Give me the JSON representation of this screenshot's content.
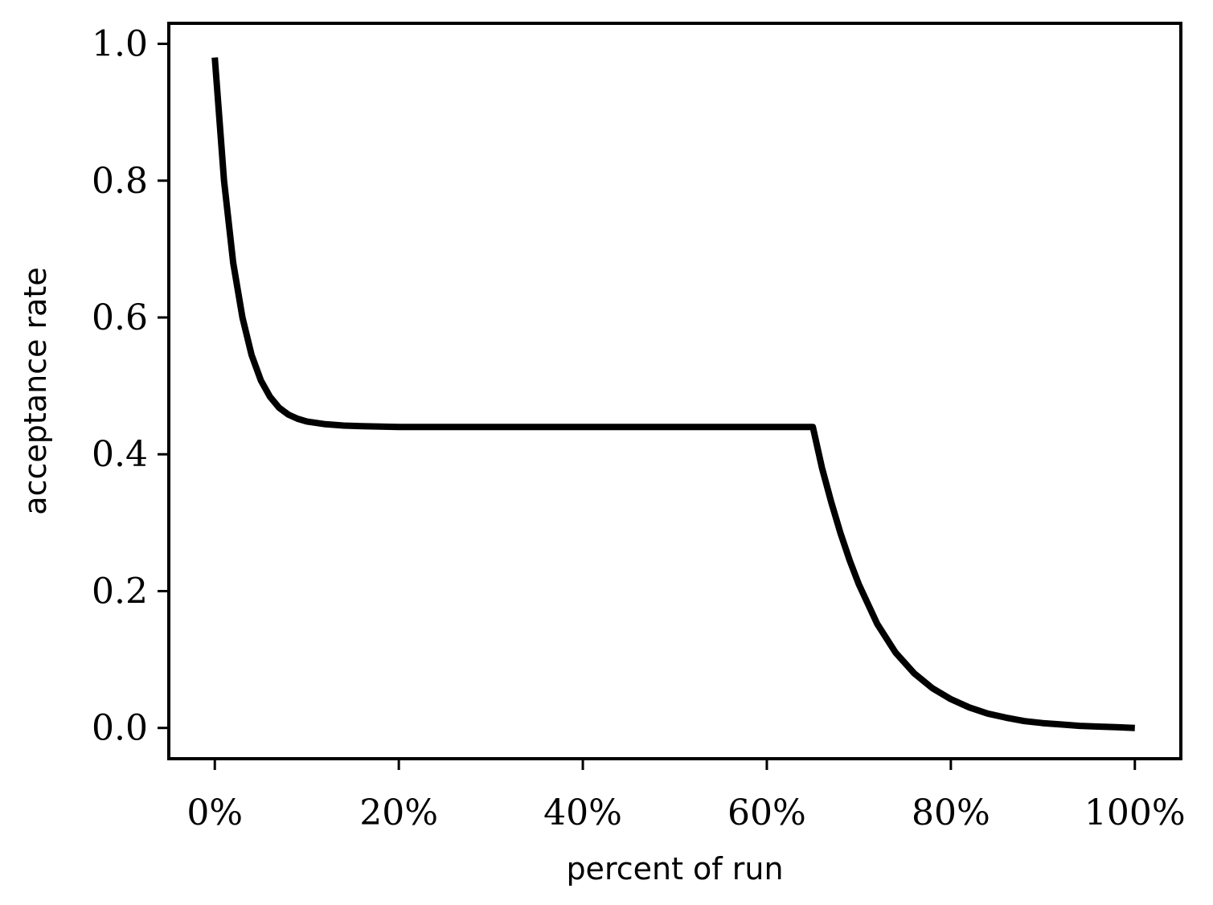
{
  "chart_data": {
    "type": "line",
    "title": "",
    "xlabel": "percent of run",
    "ylabel": "acceptance rate",
    "xlim": [
      -5,
      105
    ],
    "ylim": [
      -0.045,
      1.03
    ],
    "grid": false,
    "legend": "none",
    "line_color": "#000000",
    "x_ticks": [
      0,
      20,
      40,
      60,
      80,
      100
    ],
    "x_tick_labels": [
      "0%",
      "20%",
      "40%",
      "60%",
      "80%",
      "100%"
    ],
    "y_ticks": [
      0.0,
      0.2,
      0.4,
      0.6,
      0.8,
      1.0
    ],
    "y_tick_labels": [
      "0.0",
      "0.2",
      "0.4",
      "0.6",
      "0.8",
      "1.0"
    ],
    "series": [
      {
        "x": [
          0,
          1,
          2,
          3,
          4,
          5,
          6,
          7,
          8,
          9,
          10,
          12,
          14,
          16,
          20,
          30,
          40,
          50,
          60,
          65,
          66,
          67,
          68,
          69,
          70,
          72,
          74,
          76,
          78,
          80,
          82,
          84,
          86,
          88,
          90,
          92,
          94,
          96,
          98,
          100
        ],
        "values": [
          0.98,
          0.8,
          0.68,
          0.6,
          0.545,
          0.508,
          0.484,
          0.468,
          0.458,
          0.452,
          0.448,
          0.444,
          0.442,
          0.441,
          0.44,
          0.44,
          0.44,
          0.44,
          0.44,
          0.44,
          0.38,
          0.33,
          0.285,
          0.245,
          0.21,
          0.152,
          0.11,
          0.08,
          0.058,
          0.042,
          0.03,
          0.021,
          0.015,
          0.01,
          0.007,
          0.005,
          0.003,
          0.002,
          0.001,
          0.0
        ]
      }
    ]
  }
}
